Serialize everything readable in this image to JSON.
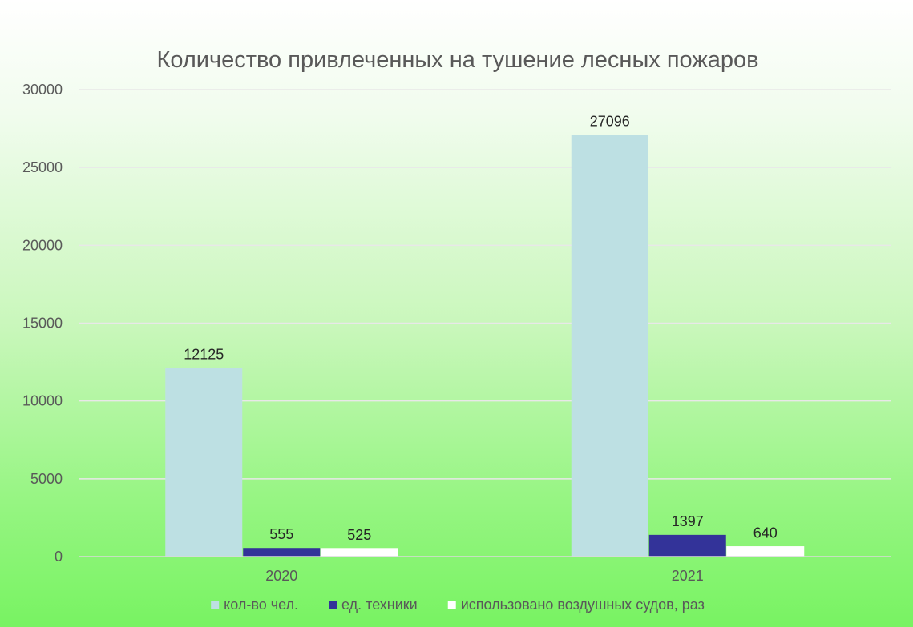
{
  "chart_data": {
    "type": "bar",
    "title": "Количество привлеченных на тушение лесных пожаров",
    "categories": [
      "2020",
      "2021"
    ],
    "series": [
      {
        "name": "кол-во чел.",
        "values": [
          12125,
          27096
        ],
        "color": "#bde0e3"
      },
      {
        "name": "ед. техники",
        "values": [
          555,
          1397
        ],
        "color": "#333399"
      },
      {
        "name": "использовано воздушных судов, раз",
        "values": [
          525,
          640
        ],
        "color": "#ffffff"
      }
    ],
    "ylim": [
      0,
      30000
    ],
    "yticks": [
      0,
      5000,
      10000,
      15000,
      20000,
      25000,
      30000
    ],
    "grid": true,
    "data_labels": true,
    "legend_position": "bottom",
    "gridline_color": "#e8e8e8",
    "axis_color": "#d9d9d9"
  }
}
